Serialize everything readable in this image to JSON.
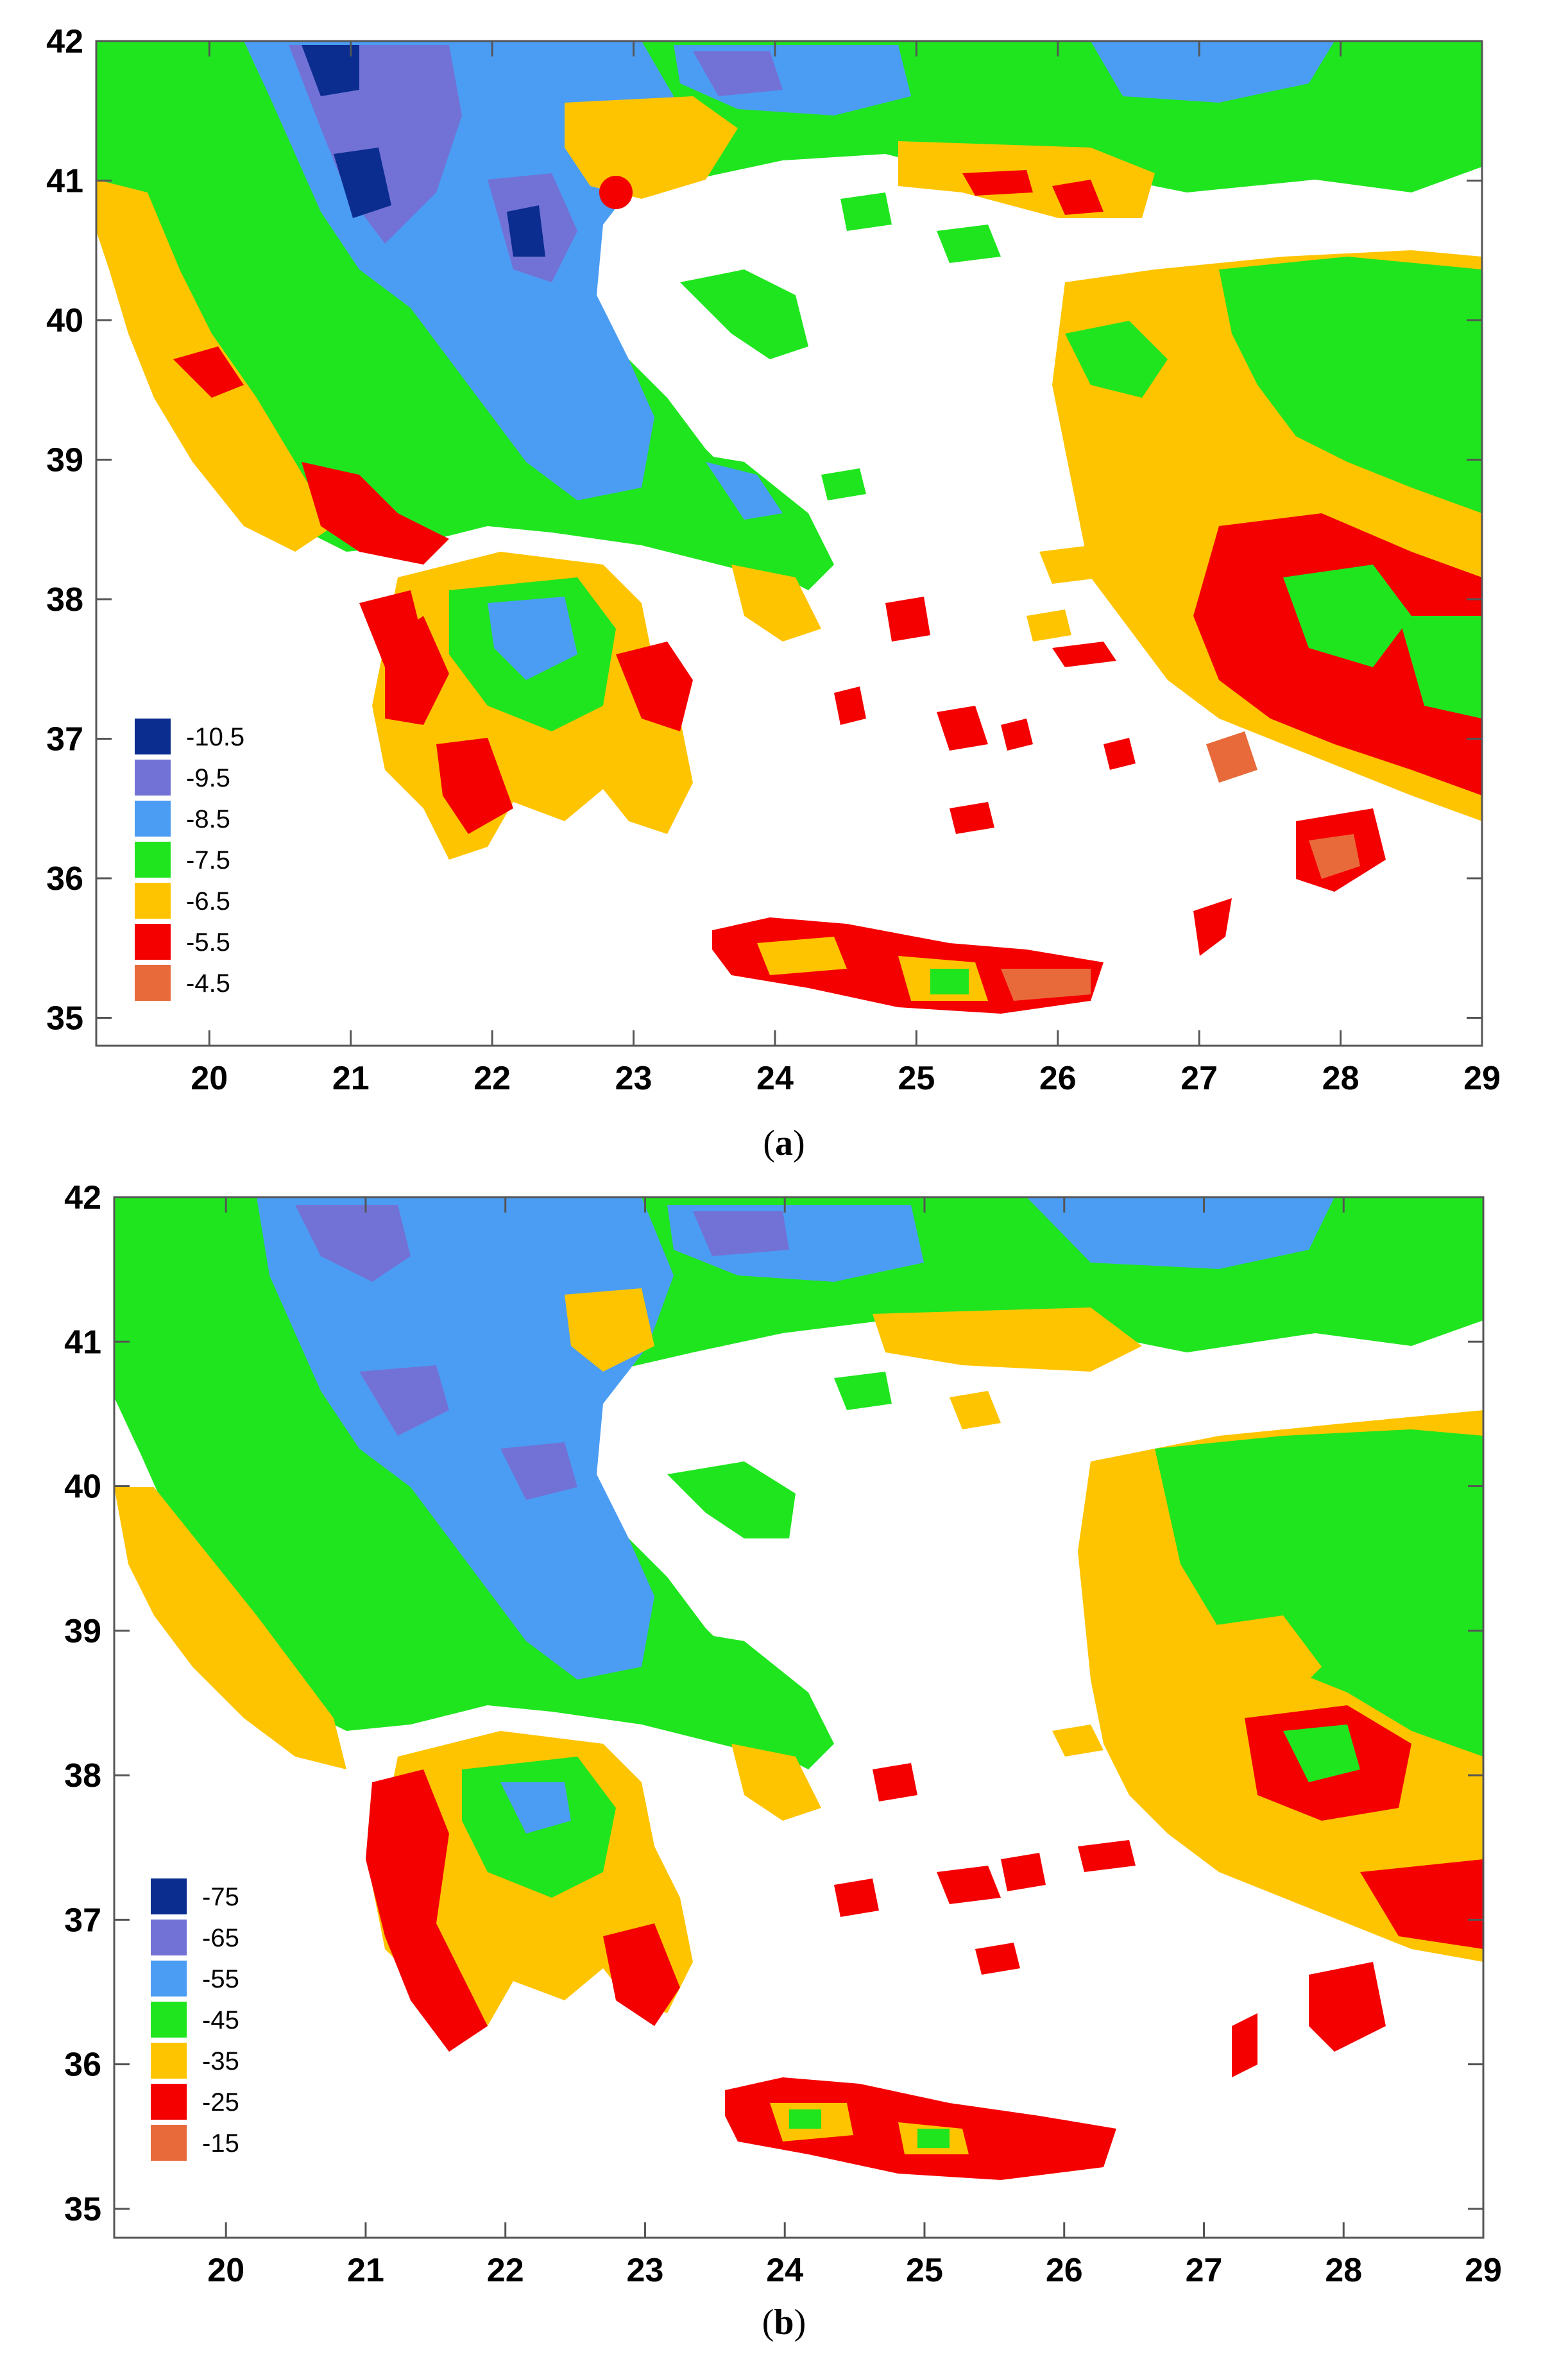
{
  "maps": [
    {
      "id": "a",
      "caption_open": "(",
      "caption_letter": "a",
      "caption_close": ")",
      "x_ticks": [
        "20",
        "21",
        "22",
        "23",
        "24",
        "25",
        "26",
        "27",
        "28",
        "29"
      ],
      "y_ticks": [
        "42",
        "41",
        "40",
        "39",
        "38",
        "37",
        "36",
        "35"
      ],
      "x_range": [
        19.2,
        29.0
      ],
      "y_range": [
        34.8,
        42.0
      ],
      "legend": [
        {
          "label": "-10.5",
          "color": "#0a2d8f"
        },
        {
          "label": "-9.5",
          "color": "#7272d6"
        },
        {
          "label": "-8.5",
          "color": "#4b9cf3"
        },
        {
          "label": "-7.5",
          "color": "#1fe51f"
        },
        {
          "label": "-6.5",
          "color": "#ffc400"
        },
        {
          "label": "-5.5",
          "color": "#f40000"
        },
        {
          "label": "-4.5",
          "color": "#e86a3a"
        }
      ]
    },
    {
      "id": "b",
      "caption_open": "(",
      "caption_letter": "b",
      "caption_close": ")",
      "x_ticks": [
        "20",
        "21",
        "22",
        "23",
        "24",
        "25",
        "26",
        "27",
        "28",
        "29"
      ],
      "y_ticks": [
        "42",
        "41",
        "40",
        "39",
        "38",
        "37",
        "36",
        "35"
      ],
      "x_range": [
        19.2,
        29.0
      ],
      "y_range": [
        34.8,
        42.0
      ],
      "legend": [
        {
          "label": "-75",
          "color": "#0a2d8f"
        },
        {
          "label": "-65",
          "color": "#7272d6"
        },
        {
          "label": "-55",
          "color": "#4b9cf3"
        },
        {
          "label": "-45",
          "color": "#1fe51f"
        },
        {
          "label": "-35",
          "color": "#ffc400"
        },
        {
          "label": "-25",
          "color": "#f40000"
        },
        {
          "label": "-15",
          "color": "#e86a3a"
        }
      ]
    }
  ]
}
